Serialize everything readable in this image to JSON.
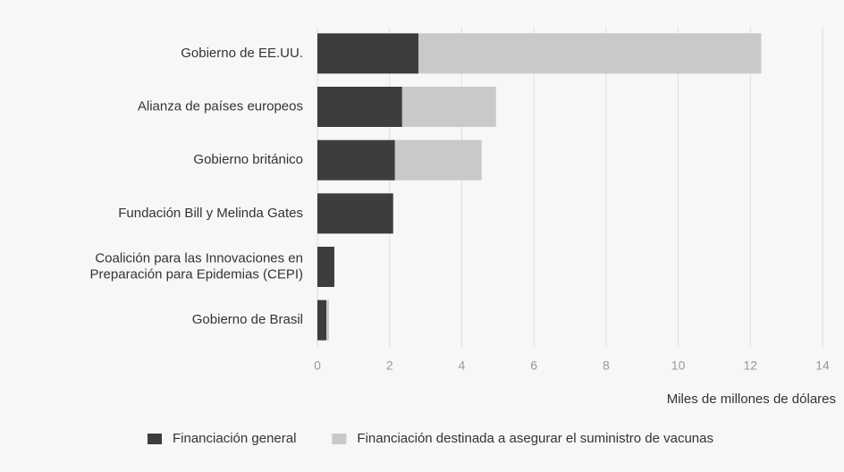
{
  "chart_data": {
    "type": "bar",
    "stacked": true,
    "orientation": "horizontal",
    "categories": [
      "Gobierno de EE.UU.",
      "Alianza de países europeos",
      "Gobierno británico",
      "Fundación Bill y Melinda Gates",
      "Coalición para las Innovaciones en\nPreparación para Epidemias (CEPI)",
      "Gobierno de Brasil"
    ],
    "series": [
      {
        "name": "Financiación general",
        "color": "#3d3d3d",
        "values": [
          2.8,
          2.35,
          2.15,
          2.1,
          0.47,
          0.25
        ]
      },
      {
        "name": "Financiación destinada a asegurar el suministro de vacunas",
        "color": "#c9c9c9",
        "values": [
          9.5,
          2.6,
          2.4,
          0,
          0,
          0.07
        ]
      }
    ],
    "xlabel": "Miles de millones de dólares",
    "xlim": [
      0,
      14
    ],
    "xticks": [
      0,
      2,
      4,
      6,
      8,
      10,
      12,
      14
    ],
    "grid": true
  }
}
